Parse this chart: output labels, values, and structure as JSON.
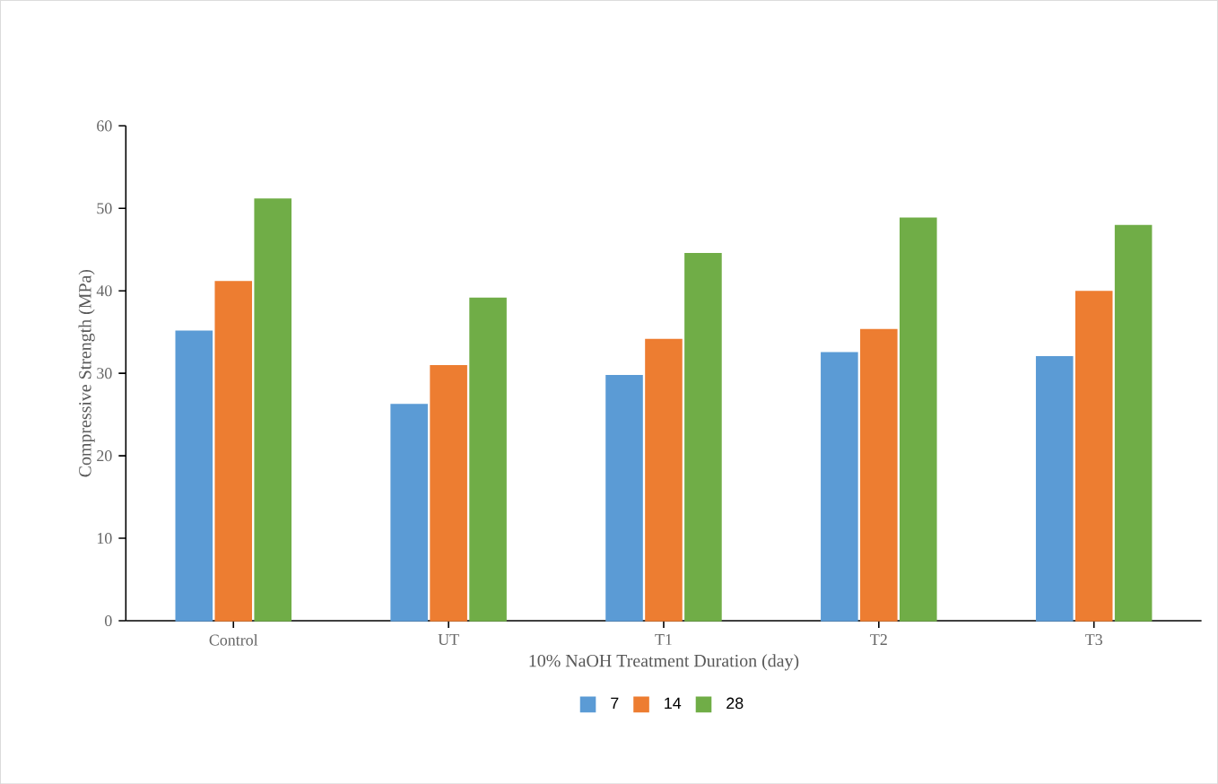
{
  "chart_data": {
    "type": "bar",
    "xlabel": "10% NaOH Treatment Duration (day)",
    "ylabel": "Compressive Strength (MPa)",
    "categories": [
      "Control",
      "UT",
      "T1",
      "T2",
      "T3"
    ],
    "series": [
      {
        "name": "7",
        "color": "#5b9bd5",
        "values": [
          35.1,
          26.2,
          29.7,
          32.5,
          32.0
        ]
      },
      {
        "name": "14",
        "color": "#ed7d31",
        "values": [
          41.1,
          30.9,
          34.1,
          35.3,
          39.9
        ]
      },
      {
        "name": "28",
        "color": "#70ad47",
        "values": [
          51.1,
          39.1,
          44.5,
          48.8,
          47.9
        ]
      }
    ],
    "ylim": [
      0,
      60
    ],
    "yticks": [
      0,
      10,
      20,
      30,
      40,
      50,
      60
    ],
    "grid": false,
    "legend": "bottom"
  }
}
